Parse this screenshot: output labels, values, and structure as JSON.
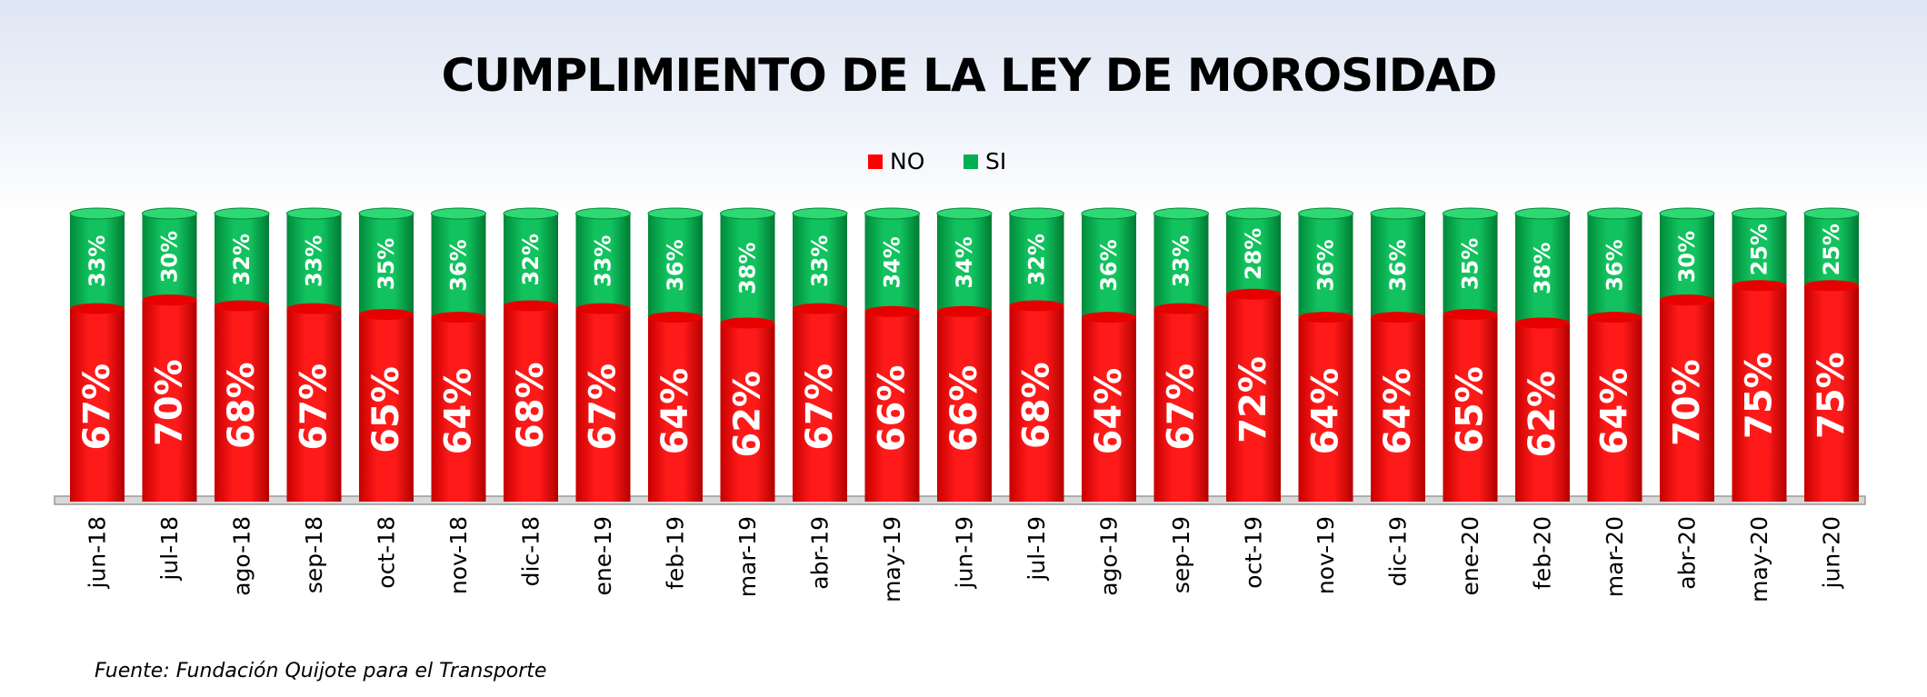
{
  "chart_data": {
    "type": "bar",
    "stacked": true,
    "title": "CUMPLIMIENTO DE LA LEY DE MOROSIDAD",
    "categories": [
      "jun-18",
      "jul-18",
      "ago-18",
      "sep-18",
      "oct-18",
      "nov-18",
      "dic-18",
      "ene-19",
      "feb-19",
      "mar-19",
      "abr-19",
      "may-19",
      "jun-19",
      "jul-19",
      "ago-19",
      "sep-19",
      "oct-19",
      "nov-19",
      "dic-19",
      "ene-20",
      "feb-20",
      "mar-20",
      "abr-20",
      "may-20",
      "jun-20"
    ],
    "series": [
      {
        "name": "NO",
        "color": "#ff0000",
        "values": [
          67,
          70,
          68,
          67,
          65,
          64,
          68,
          67,
          64,
          62,
          67,
          66,
          66,
          68,
          64,
          67,
          72,
          64,
          64,
          65,
          62,
          64,
          70,
          75,
          75
        ]
      },
      {
        "name": "SI",
        "color": "#00b050",
        "values": [
          33,
          30,
          32,
          33,
          35,
          36,
          32,
          33,
          36,
          38,
          33,
          34,
          34,
          32,
          36,
          33,
          28,
          36,
          36,
          35,
          38,
          36,
          30,
          25,
          25
        ]
      }
    ],
    "value_format": "percent",
    "ylim": [
      0,
      100
    ],
    "legend_position": "top-center",
    "grid": false
  },
  "footer": {
    "source": "Fuente: Fundación Quijote para el Transporte"
  }
}
